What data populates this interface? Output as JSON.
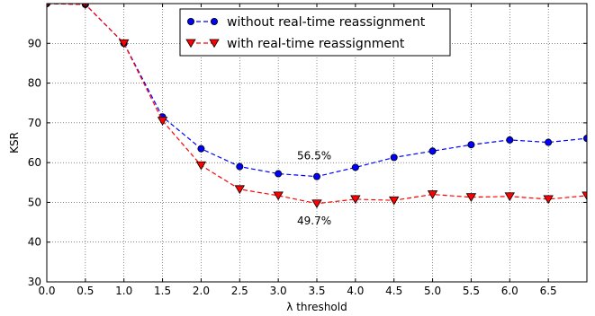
{
  "chart_data": {
    "type": "line",
    "xlabel": "λ threshold",
    "ylabel": "KSR",
    "xlim": [
      0,
      7
    ],
    "ylim": [
      30,
      100
    ],
    "xticks": [
      "0.0",
      "0.5",
      "1.0",
      "1.5",
      "2.0",
      "2.5",
      "3.0",
      "3.5",
      "4.0",
      "4.5",
      "5.0",
      "5.5",
      "6.0",
      "6.5"
    ],
    "yticks": [
      "30",
      "40",
      "50",
      "60",
      "70",
      "80",
      "90"
    ],
    "grid": true,
    "legend_position": "top-center",
    "series": [
      {
        "name": "without real-time reassignment",
        "color": "#0000ff",
        "marker": "circle",
        "x": [
          0.0,
          0.5,
          1.0,
          1.5,
          2.0,
          2.5,
          3.0,
          3.5,
          4.0,
          4.5,
          5.0,
          5.5,
          6.0,
          6.5,
          7.0
        ],
        "y": [
          100,
          99.8,
          90,
          71.5,
          63.5,
          59,
          57.2,
          56.5,
          58.8,
          61.3,
          62.9,
          64.5,
          65.7,
          65.1,
          66.1
        ]
      },
      {
        "name": "with real-time reassignment",
        "color": "#ff0000",
        "marker": "triangle-down",
        "x": [
          0.0,
          0.5,
          1.0,
          1.5,
          2.0,
          2.5,
          3.0,
          3.5,
          4.0,
          4.5,
          5.0,
          5.5,
          6.0,
          6.5,
          7.0
        ],
        "y": [
          100,
          99.8,
          90,
          70.5,
          59.3,
          53.3,
          51.7,
          49.7,
          50.8,
          50.5,
          52.0,
          51.3,
          51.5,
          50.8,
          51.7
        ]
      }
    ],
    "annotations": [
      {
        "text": "56.5%",
        "x": 3.5,
        "y": 56.5,
        "position": "above"
      },
      {
        "text": "49.7%",
        "x": 3.5,
        "y": 49.7,
        "position": "below"
      }
    ]
  }
}
